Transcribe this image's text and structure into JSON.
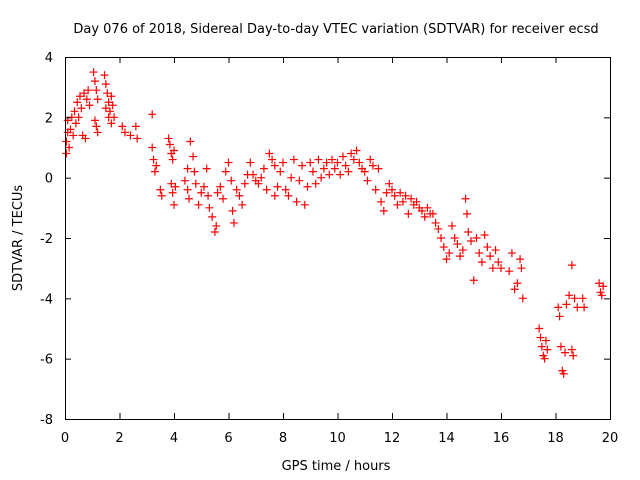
{
  "chart_data": {
    "type": "scatter",
    "title": "Day 076 of 2018, Sidereal Day-to-day VTEC variation (SDTVAR) for receiver ecsd",
    "xlabel": "GPS time / hours",
    "ylabel": "SDTVAR / TECUs",
    "xlim": [
      0,
      20
    ],
    "ylim": [
      -8,
      4
    ],
    "x_ticks": [
      0,
      2,
      4,
      6,
      8,
      10,
      12,
      14,
      16,
      18,
      20
    ],
    "y_ticks": [
      -8,
      -6,
      -4,
      -2,
      0,
      2,
      4
    ],
    "grid": false,
    "legend": "none",
    "marker": "plus",
    "marker_color": "#ff0000",
    "series": [
      {
        "name": "SDTVAR",
        "points": [
          [
            0.05,
            0.8
          ],
          [
            0.05,
            1.2
          ],
          [
            0.1,
            1.5
          ],
          [
            0.1,
            1.9
          ],
          [
            0.15,
            1.0
          ],
          [
            0.2,
            1.6
          ],
          [
            0.25,
            2.0
          ],
          [
            0.3,
            1.4
          ],
          [
            0.35,
            2.2
          ],
          [
            0.4,
            1.8
          ],
          [
            0.45,
            2.5
          ],
          [
            0.5,
            2.0
          ],
          [
            0.55,
            2.7
          ],
          [
            0.6,
            2.3
          ],
          [
            0.65,
            1.4
          ],
          [
            0.7,
            2.8
          ],
          [
            0.75,
            1.3
          ],
          [
            0.8,
            2.6
          ],
          [
            0.85,
            2.9
          ],
          [
            0.9,
            2.4
          ],
          [
            1.05,
            3.5
          ],
          [
            1.1,
            3.2
          ],
          [
            1.15,
            2.9
          ],
          [
            1.2,
            2.6
          ],
          [
            1.1,
            1.9
          ],
          [
            1.15,
            1.7
          ],
          [
            1.2,
            1.5
          ],
          [
            1.45,
            3.4
          ],
          [
            1.5,
            3.1
          ],
          [
            1.55,
            2.8
          ],
          [
            1.6,
            2.5
          ],
          [
            1.65,
            2.2
          ],
          [
            1.7,
            2.7
          ],
          [
            1.75,
            2.4
          ],
          [
            1.8,
            2.0
          ],
          [
            1.5,
            2.3
          ],
          [
            1.6,
            2.0
          ],
          [
            1.7,
            1.8
          ],
          [
            2.1,
            1.7
          ],
          [
            2.2,
            1.5
          ],
          [
            2.4,
            1.4
          ],
          [
            2.6,
            1.7
          ],
          [
            2.65,
            1.3
          ],
          [
            3.2,
            2.1
          ],
          [
            3.2,
            1.0
          ],
          [
            3.25,
            0.6
          ],
          [
            3.3,
            0.2
          ],
          [
            3.35,
            0.4
          ],
          [
            3.5,
            -0.4
          ],
          [
            3.55,
            -0.6
          ],
          [
            3.8,
            1.3
          ],
          [
            3.85,
            1.1
          ],
          [
            3.9,
            0.8
          ],
          [
            3.95,
            0.6
          ],
          [
            4.0,
            0.9
          ],
          [
            3.9,
            -0.2
          ],
          [
            3.95,
            -0.5
          ],
          [
            4.0,
            -0.9
          ],
          [
            4.05,
            -0.3
          ],
          [
            4.4,
            -0.1
          ],
          [
            4.5,
            0.3
          ],
          [
            4.5,
            -0.4
          ],
          [
            4.55,
            -0.7
          ],
          [
            4.6,
            1.2
          ],
          [
            4.7,
            0.7
          ],
          [
            4.75,
            0.2
          ],
          [
            4.8,
            -0.2
          ],
          [
            4.9,
            -0.9
          ],
          [
            5.0,
            -0.5
          ],
          [
            5.1,
            -0.3
          ],
          [
            5.2,
            0.3
          ],
          [
            5.25,
            -0.6
          ],
          [
            5.3,
            -1.0
          ],
          [
            5.4,
            -1.3
          ],
          [
            5.5,
            -1.8
          ],
          [
            5.55,
            -1.6
          ],
          [
            5.6,
            -0.5
          ],
          [
            5.7,
            -0.3
          ],
          [
            5.8,
            -0.7
          ],
          [
            5.9,
            0.2
          ],
          [
            6.0,
            0.5
          ],
          [
            6.1,
            -0.1
          ],
          [
            6.15,
            -1.1
          ],
          [
            6.2,
            -1.5
          ],
          [
            6.3,
            -0.4
          ],
          [
            6.4,
            -0.6
          ],
          [
            6.5,
            -0.9
          ],
          [
            6.6,
            -0.2
          ],
          [
            6.7,
            0.1
          ],
          [
            6.8,
            0.5
          ],
          [
            6.9,
            0.1
          ],
          [
            7.0,
            -0.1
          ],
          [
            7.1,
            -0.2
          ],
          [
            7.2,
            0.0
          ],
          [
            7.3,
            0.3
          ],
          [
            7.4,
            -0.4
          ],
          [
            7.5,
            0.8
          ],
          [
            7.6,
            0.6
          ],
          [
            7.7,
            0.4
          ],
          [
            7.7,
            -0.6
          ],
          [
            7.8,
            -0.3
          ],
          [
            7.9,
            0.2
          ],
          [
            8.0,
            0.5
          ],
          [
            8.1,
            -0.4
          ],
          [
            8.2,
            -0.6
          ],
          [
            8.3,
            0.0
          ],
          [
            8.4,
            0.6
          ],
          [
            8.5,
            -0.8
          ],
          [
            8.6,
            -0.1
          ],
          [
            8.7,
            0.4
          ],
          [
            8.8,
            -0.9
          ],
          [
            8.9,
            -0.3
          ],
          [
            9.0,
            0.5
          ],
          [
            9.1,
            0.2
          ],
          [
            9.2,
            -0.2
          ],
          [
            9.3,
            0.6
          ],
          [
            9.4,
            0.0
          ],
          [
            9.5,
            0.3
          ],
          [
            9.6,
            0.5
          ],
          [
            9.7,
            0.1
          ],
          [
            9.8,
            0.6
          ],
          [
            9.9,
            0.3
          ],
          [
            10.0,
            0.5
          ],
          [
            10.1,
            0.1
          ],
          [
            10.2,
            0.7
          ],
          [
            10.3,
            0.4
          ],
          [
            10.4,
            0.2
          ],
          [
            10.5,
            0.8
          ],
          [
            10.6,
            0.6
          ],
          [
            10.7,
            0.9
          ],
          [
            10.8,
            0.5
          ],
          [
            10.9,
            0.3
          ],
          [
            11.0,
            0.2
          ],
          [
            11.1,
            -0.1
          ],
          [
            11.2,
            0.6
          ],
          [
            11.3,
            0.4
          ],
          [
            11.4,
            -0.4
          ],
          [
            11.5,
            0.3
          ],
          [
            11.6,
            -0.8
          ],
          [
            11.7,
            -1.1
          ],
          [
            11.8,
            -0.5
          ],
          [
            11.9,
            -0.2
          ],
          [
            12.0,
            -0.4
          ],
          [
            12.1,
            -0.6
          ],
          [
            12.2,
            -0.9
          ],
          [
            12.3,
            -0.5
          ],
          [
            12.4,
            -0.8
          ],
          [
            12.5,
            -0.6
          ],
          [
            12.6,
            -1.2
          ],
          [
            12.7,
            -0.7
          ],
          [
            12.8,
            -0.9
          ],
          [
            12.9,
            -0.8
          ],
          [
            13.0,
            -1.0
          ],
          [
            13.1,
            -1.1
          ],
          [
            13.2,
            -1.3
          ],
          [
            13.3,
            -1.0
          ],
          [
            13.4,
            -1.2
          ],
          [
            13.5,
            -1.2
          ],
          [
            13.6,
            -1.5
          ],
          [
            13.7,
            -1.7
          ],
          [
            13.8,
            -2.0
          ],
          [
            13.9,
            -2.3
          ],
          [
            14.0,
            -2.7
          ],
          [
            14.1,
            -2.5
          ],
          [
            14.2,
            -1.6
          ],
          [
            14.3,
            -2.0
          ],
          [
            14.4,
            -2.2
          ],
          [
            14.5,
            -2.6
          ],
          [
            14.6,
            -2.4
          ],
          [
            14.7,
            -0.7
          ],
          [
            14.75,
            -1.2
          ],
          [
            14.8,
            -1.8
          ],
          [
            14.9,
            -2.1
          ],
          [
            15.0,
            -3.4
          ],
          [
            15.1,
            -2.0
          ],
          [
            15.2,
            -2.5
          ],
          [
            15.3,
            -2.8
          ],
          [
            15.4,
            -1.9
          ],
          [
            15.5,
            -2.3
          ],
          [
            15.6,
            -2.6
          ],
          [
            15.7,
            -3.0
          ],
          [
            15.8,
            -2.4
          ],
          [
            15.9,
            -2.8
          ],
          [
            16.0,
            -3.0
          ],
          [
            16.3,
            -3.1
          ],
          [
            16.4,
            -2.5
          ],
          [
            16.5,
            -3.7
          ],
          [
            16.6,
            -3.5
          ],
          [
            16.7,
            -2.7
          ],
          [
            16.75,
            -3.0
          ],
          [
            16.8,
            -4.0
          ],
          [
            17.4,
            -5.0
          ],
          [
            17.45,
            -5.3
          ],
          [
            17.5,
            -5.6
          ],
          [
            17.55,
            -5.9
          ],
          [
            17.6,
            -6.0
          ],
          [
            17.65,
            -5.4
          ],
          [
            17.7,
            -5.7
          ],
          [
            18.1,
            -4.3
          ],
          [
            18.15,
            -4.6
          ],
          [
            18.2,
            -5.6
          ],
          [
            18.25,
            -6.4
          ],
          [
            18.3,
            -6.5
          ],
          [
            18.35,
            -5.8
          ],
          [
            18.4,
            -4.2
          ],
          [
            18.5,
            -3.9
          ],
          [
            18.6,
            -2.9
          ],
          [
            18.6,
            -5.7
          ],
          [
            18.65,
            -5.9
          ],
          [
            18.7,
            -4.0
          ],
          [
            18.8,
            -4.3
          ],
          [
            19.0,
            -4.0
          ],
          [
            19.05,
            -4.3
          ],
          [
            19.6,
            -3.5
          ],
          [
            19.65,
            -3.8
          ],
          [
            19.7,
            -3.9
          ],
          [
            19.75,
            -3.6
          ]
        ]
      }
    ]
  }
}
